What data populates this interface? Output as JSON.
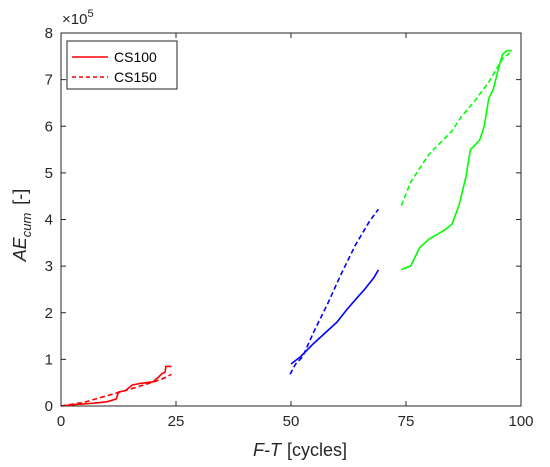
{
  "chart_data": {
    "type": "line",
    "xlabel_italic": "F-T",
    "xlabel_unit": "[cycles]",
    "ylabel_main": "AE",
    "ylabel_sub": "cum",
    "ylabel_unit": "[-]",
    "y_exponent_base": "×10",
    "y_exponent_power": "5",
    "xlim": [
      0,
      100
    ],
    "ylim": [
      0,
      8
    ],
    "y_scale": 100000,
    "xticks": [
      0,
      25,
      50,
      75,
      100
    ],
    "yticks": [
      0,
      1,
      2,
      3,
      4,
      5,
      6,
      7,
      8
    ],
    "grid": false,
    "legend": {
      "placement": "top-left",
      "entries": [
        {
          "name": "CS100",
          "style": "solid",
          "color": "#ff0000"
        },
        {
          "name": "CS150",
          "style": "dashed",
          "color": "#ff0000"
        }
      ]
    },
    "series": [
      {
        "group": "CS100 / 0-25 cycles",
        "style": "solid",
        "color": "#ff0000",
        "x": [
          0,
          3,
          7,
          10,
          12,
          12.5,
          14,
          15.5,
          17,
          18.5,
          20,
          21,
          22,
          22.6,
          22.8,
          24
        ],
        "y": [
          0,
          0.03,
          0.06,
          0.09,
          0.15,
          0.3,
          0.33,
          0.45,
          0.48,
          0.5,
          0.52,
          0.6,
          0.7,
          0.72,
          0.85,
          0.85
        ]
      },
      {
        "group": "CS150 / 0-25 cycles",
        "style": "dashed",
        "color": "#ff0000",
        "x": [
          0,
          5,
          10,
          15,
          19,
          22,
          24
        ],
        "y": [
          0,
          0.08,
          0.22,
          0.36,
          0.48,
          0.58,
          0.68
        ]
      },
      {
        "group": "CS100 / 50-69 cycles",
        "style": "solid",
        "color": "#0000ff",
        "x": [
          50,
          52,
          55,
          58,
          60,
          62,
          64,
          66,
          68,
          69
        ],
        "y": [
          0.9,
          1.05,
          1.35,
          1.62,
          1.8,
          2.05,
          2.28,
          2.5,
          2.75,
          2.92
        ]
      },
      {
        "group": "CS150 / 50-69 cycles",
        "style": "dashed",
        "color": "#0000ff",
        "x": [
          49.8,
          51,
          52.5,
          55,
          58,
          61,
          64,
          67,
          69
        ],
        "y": [
          0.68,
          0.9,
          1.05,
          1.6,
          2.2,
          2.85,
          3.45,
          3.95,
          4.22
        ]
      },
      {
        "group": "CS100 / 74-98 cycles",
        "style": "solid",
        "color": "#00ff00",
        "x": [
          74,
          76,
          77,
          78,
          80,
          83,
          85,
          86.5,
          88,
          89,
          90,
          91,
          92,
          93,
          94,
          95,
          96,
          97,
          98
        ],
        "y": [
          2.93,
          3.0,
          3.2,
          3.4,
          3.58,
          3.75,
          3.9,
          4.3,
          4.9,
          5.5,
          5.6,
          5.7,
          6.0,
          6.6,
          6.8,
          7.2,
          7.55,
          7.62,
          7.62
        ]
      },
      {
        "group": "CS150 / 74-98 cycles",
        "style": "dashed",
        "color": "#00ff00",
        "x": [
          74,
          76,
          80,
          85,
          87,
          90,
          93,
          96,
          98
        ],
        "y": [
          4.3,
          4.8,
          5.4,
          5.9,
          6.2,
          6.55,
          6.95,
          7.45,
          7.6
        ]
      }
    ]
  }
}
